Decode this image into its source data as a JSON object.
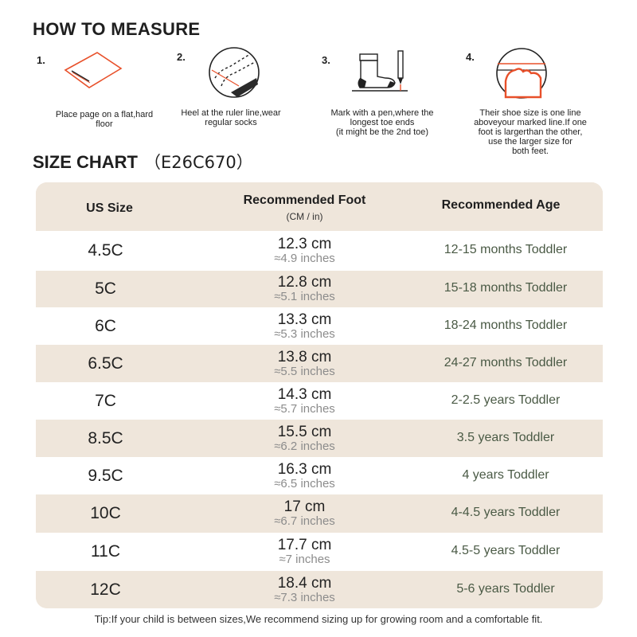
{
  "how_to": {
    "title": "HOW TO MEASURE",
    "steps": [
      {
        "num": "1.",
        "caption": [
          "Place page on a flat,hard",
          "floor"
        ],
        "icon": "paper-sheet-icon"
      },
      {
        "num": "2.",
        "caption": [
          "Heel at the ruler line,wear",
          "regular socks"
        ],
        "icon": "heel-on-line-icon"
      },
      {
        "num": "3.",
        "caption": [
          "Mark with a pen,where the",
          "longest toe ends",
          "(it might be the 2nd toe)"
        ],
        "icon": "sock-and-pen-icon"
      },
      {
        "num": "4.",
        "caption": [
          "Their shoe size is one line",
          "aboveyour marked line.If one",
          "foot is largerthan the other,",
          "use the larger size for",
          "both feet."
        ],
        "icon": "toe-line-icon"
      }
    ]
  },
  "size_chart": {
    "title": "SIZE CHART",
    "code": "（E26C670）",
    "headers": {
      "us_size": "US Size",
      "foot": "Recommended Foot",
      "foot_sub": "(CM / in)",
      "age": "Recommended Age"
    },
    "rows": [
      {
        "size": "4.5C",
        "cm": "12.3 cm",
        "inch": "≈4.9 inches",
        "age": "12-15 months Toddler"
      },
      {
        "size": "5C",
        "cm": "12.8 cm",
        "inch": "≈5.1 inches",
        "age": "15-18 months Toddler"
      },
      {
        "size": "6C",
        "cm": "13.3 cm",
        "inch": "≈5.3 inches",
        "age": "18-24 months Toddler"
      },
      {
        "size": "6.5C",
        "cm": "13.8 cm",
        "inch": "≈5.5 inches",
        "age": "24-27 months Toddler"
      },
      {
        "size": "7C",
        "cm": "14.3 cm",
        "inch": "≈5.7 inches",
        "age": "2-2.5 years Toddler"
      },
      {
        "size": "8.5C",
        "cm": "15.5 cm",
        "inch": "≈6.2 inches",
        "age": "3.5 years Toddler"
      },
      {
        "size": "9.5C",
        "cm": "16.3 cm",
        "inch": "≈6.5 inches",
        "age": "4 years Toddler"
      },
      {
        "size": "10C",
        "cm": "17 cm",
        "inch": "≈6.7 inches",
        "age": "4-4.5 years Toddler"
      },
      {
        "size": "11C",
        "cm": "17.7 cm",
        "inch": "≈7 inches",
        "age": "4.5-5 years Toddler"
      },
      {
        "size": "12C",
        "cm": "18.4 cm",
        "inch": "≈7.3 inches",
        "age": "5-6 years Toddler"
      }
    ]
  },
  "tip": "Tip:If your child is between sizes,We recommend sizing up for growing room and a comfortable fit.",
  "colors": {
    "accent": "#e8502a",
    "band": "#efe6db",
    "age_text": "#4a5a45"
  }
}
